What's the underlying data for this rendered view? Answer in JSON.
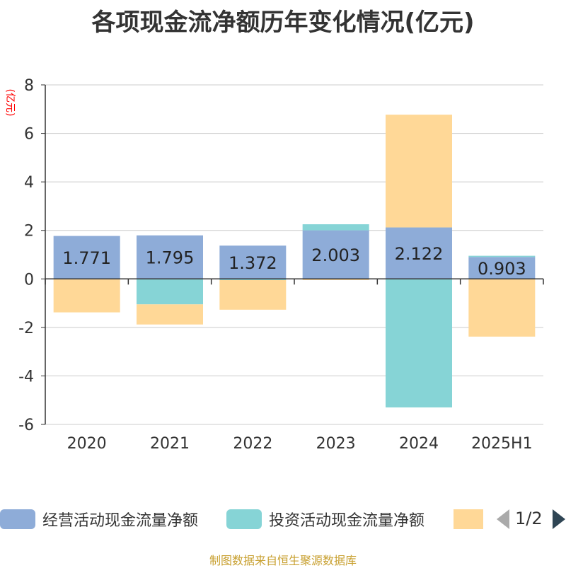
{
  "chart_data": {
    "type": "bar",
    "stacked": true,
    "title": "各项现金流净额历年变化情况(亿元)",
    "ylabel": "(亿元)",
    "categories": [
      "2020",
      "2021",
      "2022",
      "2023",
      "2024",
      "2025H1"
    ],
    "ylim": [
      -6,
      8
    ],
    "yticks": [
      8,
      6,
      4,
      2,
      0,
      -2,
      -4,
      -6
    ],
    "grid": true,
    "legend_position": "bottom",
    "series": [
      {
        "name": "经营活动现金流量净额",
        "color": "#8eacd8",
        "values": [
          1.771,
          1.795,
          1.372,
          2.003,
          2.122,
          0.903
        ],
        "labels": [
          "1.771",
          "1.795",
          "1.372",
          "2.003",
          "2.122",
          "0.903"
        ]
      },
      {
        "name": "投资活动现金流量净额",
        "color": "#86d4d6",
        "values": [
          0,
          -1.05,
          -0.05,
          0.25,
          -5.3,
          0.05
        ]
      },
      {
        "name": "",
        "color": "#ffd897",
        "values": [
          -1.38,
          -0.83,
          -1.22,
          -0.05,
          4.65,
          -2.38
        ]
      }
    ]
  },
  "legend": {
    "item1": "经营活动现金流量净额",
    "item2": "投资活动现金流量净额",
    "page": "1/2"
  },
  "footer": {
    "source": "制图数据来自恒生聚源数据库"
  }
}
